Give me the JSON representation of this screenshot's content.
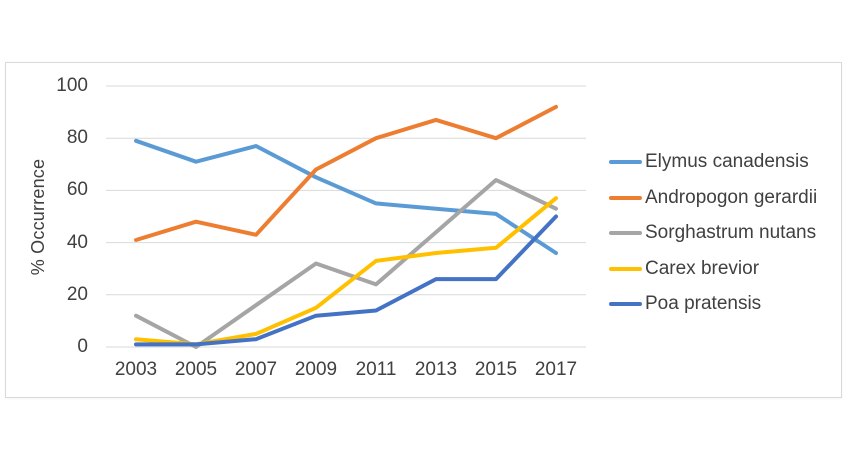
{
  "style": {
    "grid_color": "#D9D9D9",
    "border_color": "#D9D9D9",
    "text_color": "#404040",
    "background": "#FFFFFF"
  },
  "chart_data": {
    "type": "line",
    "title": "",
    "xlabel": "",
    "ylabel": "% Occurrence",
    "ylim": [
      0,
      100
    ],
    "y_tick_labels": [
      "0",
      "20",
      "40",
      "60",
      "80",
      "100"
    ],
    "y_tick_values": [
      0,
      20,
      40,
      60,
      80,
      100
    ],
    "grid": "horizontal",
    "legend_position": "right",
    "categories": [
      "2003",
      "2005",
      "2007",
      "2009",
      "2011",
      "2013",
      "2015",
      "2017"
    ],
    "series": [
      {
        "name": "Elymus canadensis",
        "color": "#5B9BD5",
        "values": [
          79,
          71,
          77,
          65,
          55,
          53,
          51,
          36
        ]
      },
      {
        "name": "Andropogon gerardii",
        "color": "#ED7D31",
        "values": [
          41,
          48,
          43,
          68,
          80,
          87,
          80,
          92
        ]
      },
      {
        "name": "Sorghastrum nutans",
        "color": "#A5A5A5",
        "values": [
          12,
          0,
          16,
          32,
          24,
          44,
          64,
          53
        ]
      },
      {
        "name": "Carex brevior",
        "color": "#FFC000",
        "values": [
          3,
          1,
          5,
          15,
          33,
          36,
          38,
          57
        ]
      },
      {
        "name": "Poa pratensis",
        "color": "#4472C4",
        "values": [
          1,
          1,
          3,
          12,
          14,
          26,
          26,
          50
        ]
      }
    ]
  }
}
